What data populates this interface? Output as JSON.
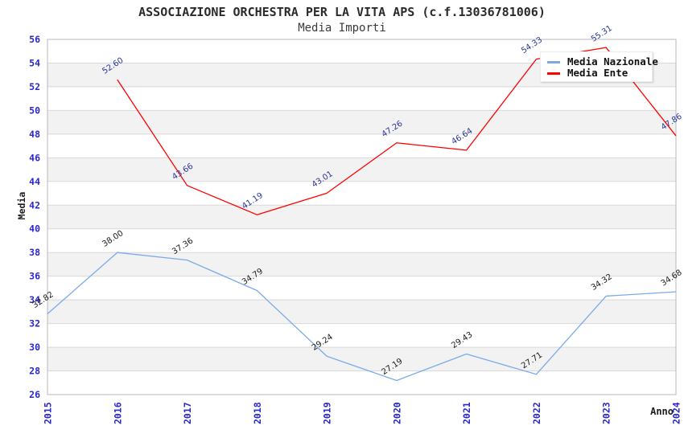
{
  "chart_data": {
    "type": "line",
    "title": "ASSOCIAZIONE ORCHESTRA PER LA VITA APS (c.f.13036781006)",
    "subtitle": "Media Importi",
    "xlabel": "Anno",
    "ylabel": "Media",
    "categories": [
      "2015",
      "2016",
      "2017",
      "2018",
      "2019",
      "2020",
      "2021",
      "2022",
      "2023",
      "2024"
    ],
    "series": [
      {
        "name": "Media Nazionale",
        "color": "#7aabe8",
        "label_color": "#1a1a1a",
        "values": [
          32.82,
          38.0,
          37.36,
          34.79,
          29.24,
          27.19,
          29.43,
          27.71,
          34.32,
          34.68
        ]
      },
      {
        "name": "Media Ente",
        "color": "#ff0000",
        "label_color": "#2c3799",
        "values": [
          null,
          52.6,
          43.66,
          41.19,
          43.01,
          47.26,
          46.64,
          54.33,
          55.31,
          47.86
        ]
      }
    ],
    "ylim": [
      26,
      56
    ],
    "ytick_step": 2,
    "grid": "horizontal alternating bands",
    "legend_position": "top-right",
    "value_label_decimals": 2,
    "colors": {
      "tick_label": "#2828cc",
      "band_gray": "#f2f2f2",
      "band_white": "#ffffff",
      "grid_line": "#d9d9d9",
      "frame": "#b8b8b8",
      "axis_title": "#1c1c1c"
    }
  }
}
